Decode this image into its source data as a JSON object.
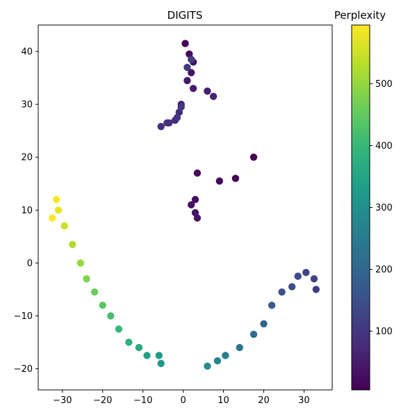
{
  "chart_data": [
    {
      "type": "scatter",
      "title": "DIGITS",
      "xlabel": "",
      "ylabel": "",
      "xlim": [
        -36,
        37
      ],
      "ylim": [
        -24,
        45
      ],
      "xticks": [
        -30,
        -20,
        -10,
        0,
        10,
        20,
        30
      ],
      "xtick_labels": [
        "−30",
        "−20",
        "−10",
        "0",
        "10",
        "20",
        "30"
      ],
      "yticks": [
        -20,
        -10,
        0,
        10,
        20,
        30,
        40
      ],
      "ytick_labels": [
        "−20",
        "−10",
        "0",
        "10",
        "20",
        "30",
        "40"
      ],
      "grid": false,
      "color_variable": "Perplexity",
      "path": [
        {
          "x": 0.5,
          "y": 41.5,
          "c": 5
        },
        {
          "x": 1.5,
          "y": 39.5,
          "c": 15
        },
        {
          "x": 2.5,
          "y": 38.0,
          "c": 25
        },
        {
          "x": 2.0,
          "y": 36.0,
          "c": 35
        },
        {
          "x": 1.0,
          "y": 34.5,
          "c": 45
        },
        {
          "x": 2.5,
          "y": 33.0,
          "c": 50
        },
        {
          "x": 6.0,
          "y": 32.5,
          "c": 55
        },
        {
          "x": 7.5,
          "y": 31.5,
          "c": 60
        },
        {
          "x": -0.5,
          "y": 30.0,
          "c": 65
        },
        {
          "x": -1.0,
          "y": 28.5,
          "c": 70
        },
        {
          "x": -2.0,
          "y": 27.0,
          "c": 75
        },
        {
          "x": -3.5,
          "y": 26.5,
          "c": 80
        },
        {
          "x": -5.5,
          "y": 25.8,
          "c": 85
        },
        {
          "x": -4.0,
          "y": 26.5,
          "c": 90
        },
        {
          "x": -1.5,
          "y": 27.5,
          "c": 95
        },
        {
          "x": -0.5,
          "y": 29.5,
          "c": 100
        },
        {
          "x": 1.0,
          "y": 37.0,
          "c": 105
        },
        {
          "x": 2.0,
          "y": 38.5,
          "c": 110
        },
        {
          "x": 17.5,
          "y": 20.0,
          "c": 5
        },
        {
          "x": 13.0,
          "y": 16.0,
          "c": 10
        },
        {
          "x": 9.0,
          "y": 15.5,
          "c": 15
        },
        {
          "x": 3.5,
          "y": 17.0,
          "c": 20
        },
        {
          "x": 3.0,
          "y": 12.0,
          "c": 25
        },
        {
          "x": 2.0,
          "y": 11.0,
          "c": 30
        },
        {
          "x": 3.0,
          "y": 9.5,
          "c": 35
        },
        {
          "x": 3.5,
          "y": 8.5,
          "c": 40
        },
        {
          "x": 33.0,
          "y": -5.0,
          "c": 110
        },
        {
          "x": 32.5,
          "y": -3.0,
          "c": 120
        },
        {
          "x": 30.5,
          "y": -1.8,
          "c": 130
        },
        {
          "x": 28.5,
          "y": -2.5,
          "c": 140
        },
        {
          "x": 27.0,
          "y": -4.5,
          "c": 150
        },
        {
          "x": 24.5,
          "y": -5.5,
          "c": 160
        },
        {
          "x": 22.0,
          "y": -8.0,
          "c": 175
        },
        {
          "x": 20.0,
          "y": -11.5,
          "c": 195
        },
        {
          "x": 17.5,
          "y": -13.5,
          "c": 215
        },
        {
          "x": 14.0,
          "y": -16.0,
          "c": 235
        },
        {
          "x": 10.5,
          "y": -17.5,
          "c": 255
        },
        {
          "x": 8.5,
          "y": -18.5,
          "c": 275
        },
        {
          "x": 6.0,
          "y": -19.5,
          "c": 295
        },
        {
          "x": -5.5,
          "y": -19.0,
          "c": 315
        },
        {
          "x": -6.0,
          "y": -17.5,
          "c": 330
        },
        {
          "x": -9.0,
          "y": -17.5,
          "c": 345
        },
        {
          "x": -11.0,
          "y": -16.0,
          "c": 360
        },
        {
          "x": -13.5,
          "y": -15.0,
          "c": 380
        },
        {
          "x": -16.0,
          "y": -12.5,
          "c": 400
        },
        {
          "x": -18.0,
          "y": -10.0,
          "c": 420
        },
        {
          "x": -20.0,
          "y": -8.0,
          "c": 440
        },
        {
          "x": -22.0,
          "y": -5.5,
          "c": 460
        },
        {
          "x": -24.0,
          "y": -3.0,
          "c": 480
        },
        {
          "x": -25.5,
          "y": 0.0,
          "c": 500
        },
        {
          "x": -27.5,
          "y": 3.5,
          "c": 525
        },
        {
          "x": -29.5,
          "y": 7.0,
          "c": 550
        },
        {
          "x": -31.0,
          "y": 10.0,
          "c": 575
        },
        {
          "x": -31.5,
          "y": 12.0,
          "c": 590
        },
        {
          "x": -32.5,
          "y": 8.5,
          "c": 595
        }
      ]
    },
    {
      "type": "colorbar",
      "title": "Perplexity",
      "range": [
        5,
        595
      ],
      "ticks": [
        100,
        200,
        300,
        400,
        500
      ],
      "tick_labels": [
        "100",
        "200",
        "300",
        "400",
        "500"
      ],
      "colormap": "viridis",
      "colormap_stops": [
        "#440154",
        "#482878",
        "#3e4989",
        "#31688e",
        "#26828e",
        "#1f9e89",
        "#35b779",
        "#6ece58",
        "#b5de2b",
        "#fde725"
      ]
    }
  ]
}
